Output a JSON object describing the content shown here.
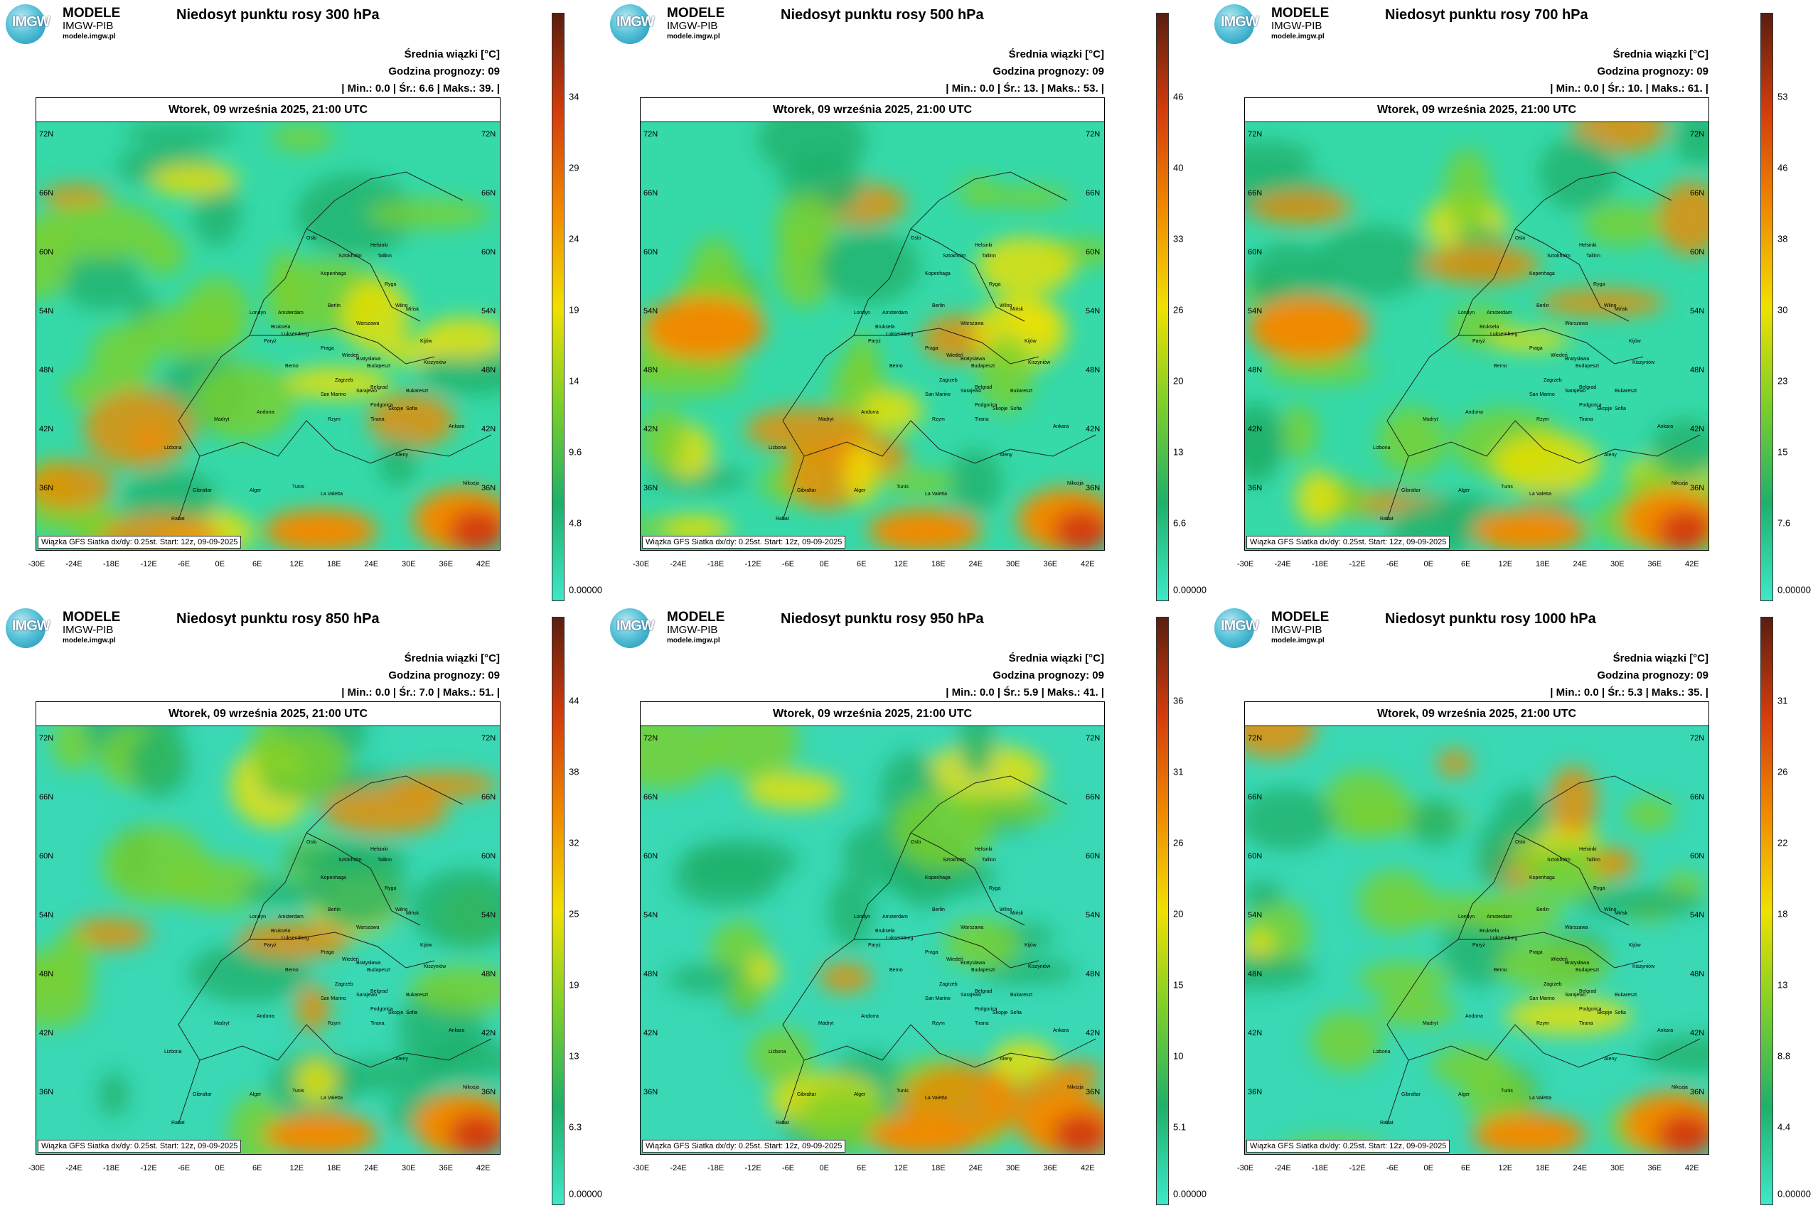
{
  "logo": {
    "line1": "MODELE",
    "line2": "IMGW-PIB",
    "line3": "modele.imgw.pl",
    "badge": "IMGW"
  },
  "common": {
    "mean_label": "Średnia wiązki [°C]",
    "hour_label": "Godzina prognozy: 09",
    "date": "Wtorek, 09 września 2025, 21:00 UTC",
    "footer": "Wiązka GFS Siatka dx/dy: 0.25st. Start: 12z, 09-09-2025",
    "lat_labels": [
      "72N",
      "66N",
      "60N",
      "54N",
      "48N",
      "42N",
      "36N"
    ],
    "lon_labels": [
      "-30E",
      "-24E",
      "-18E",
      "-12E",
      "-6E",
      "0E",
      "6E",
      "12E",
      "18E",
      "24E",
      "30E",
      "36E",
      "42E"
    ],
    "cities": [
      "Oslo",
      "Sztokholm",
      "Helsinki",
      "Tallinn",
      "Ryga",
      "Wilno",
      "Mińsk",
      "Kopenhaga",
      "Amsterdam",
      "Berlin",
      "Warszawa",
      "Londyn",
      "Bruksela",
      "Luksemburg",
      "Paryż",
      "Praga",
      "Wiedeń",
      "Bratysława",
      "Budapeszt",
      "Kiszyniów",
      "Kijów",
      "Berno",
      "Zagrzeb",
      "Belgrad",
      "Bukareszt",
      "Sarajewo",
      "Podgorica",
      "San Marino",
      "Skopje",
      "Sofia",
      "Tirana",
      "Rzym",
      "Madryt",
      "Andorra",
      "Lizbona",
      "Ankara",
      "Ateny",
      "Gibraltar",
      "Rabat",
      "Alger",
      "Tunis",
      "La Valetta",
      "Nikozja"
    ]
  },
  "panels": [
    {
      "title": "Niedosyt punktu rosy 300 hPa",
      "stats": "| Min.: 0.0 | Śr.: 6.6 | Maks.: 39. |",
      "colorbar": [
        "34",
        "29",
        "24",
        "19",
        "14",
        "9.6",
        "4.8",
        "0.00000"
      ]
    },
    {
      "title": "Niedosyt punktu rosy 500 hPa",
      "stats": "| Min.: 0.0 | Śr.: 13. | Maks.: 53. |",
      "colorbar": [
        "46",
        "40",
        "33",
        "26",
        "20",
        "13",
        "6.6",
        "0.00000"
      ]
    },
    {
      "title": "Niedosyt punktu rosy 700 hPa",
      "stats": "| Min.: 0.0 | Śr.: 10. | Maks.: 61. |",
      "colorbar": [
        "53",
        "46",
        "38",
        "30",
        "23",
        "15",
        "7.6",
        "0.00000"
      ]
    },
    {
      "title": "Niedosyt punktu rosy 850 hPa",
      "stats": "| Min.: 0.0 | Śr.: 7.0 | Maks.: 51. |",
      "colorbar": [
        "44",
        "38",
        "32",
        "25",
        "19",
        "13",
        "6.3",
        "0.00000"
      ]
    },
    {
      "title": "Niedosyt punktu rosy 950 hPa",
      "stats": "| Min.: 0.0 | Śr.: 5.9 | Maks.: 41. |",
      "colorbar": [
        "36",
        "31",
        "26",
        "20",
        "15",
        "10",
        "5.1",
        "0.00000"
      ]
    },
    {
      "title": "Niedosyt punktu rosy 1000 hPa",
      "stats": "| Min.: 0.0 | Śr.: 5.3 | Maks.: 35. |",
      "colorbar": [
        "31",
        "26",
        "22",
        "18",
        "13",
        "8.8",
        "4.4",
        "0.00000"
      ]
    }
  ],
  "colors": {
    "low": "#3ee8c8",
    "mid_low": "#1fb06a",
    "mid": "#7ccf2a",
    "mid_high": "#f0e000",
    "high": "#f08a00",
    "very_high": "#d43c0c",
    "max": "#5a1e10"
  }
}
